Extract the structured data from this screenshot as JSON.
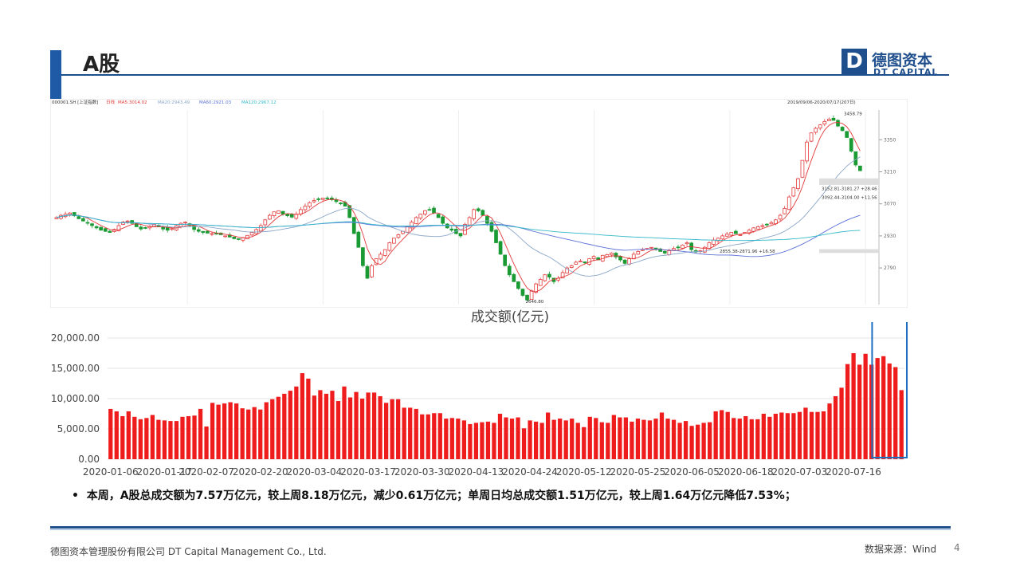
{
  "slide": {
    "title": "A股",
    "logo": {
      "box": "D",
      "cn": "德图资本",
      "en": "DT CAPITAL"
    },
    "bullet": "本周，A股总成交额为7.57万亿元，较上周8.18万亿元，减少0.61万亿元；单周日均总成交额1.51万亿元，较上周1.64万亿元降低7.53%；",
    "footer_left": "德图资本管理股份有限公司  DT Capital  Management  Co., Ltd.",
    "footer_right": "数据来源：Wind",
    "page_number": "4",
    "colors": {
      "brand": "#1f4e8c",
      "bar": "#ee1c1c",
      "highlight_box": "#1f6fc0",
      "up": "#e23a3a",
      "down": "#1a9a33"
    }
  },
  "chart_data": [
    {
      "type": "candlestick",
      "header": {
        "code": "000001.SH [上证指数]",
        "period": "日线",
        "ma5": "MA5:3014.02",
        "ma20": "MA20:2943.49",
        "ma60": "MA60:2921.03",
        "ma120": "MA120:2967.12",
        "range": "2019/09/06-2020/07/17(207日)"
      },
      "y_ticks": [
        3350,
        3210,
        3070,
        2930,
        2790
      ],
      "ylim": [
        2630,
        3480
      ],
      "annotations": {
        "high": "3458.79",
        "low": "2646.80",
        "range1": "3152.81-3181.27  +28.46",
        "range2": "3092.44-3104.00  +11.56",
        "range3": "2855.38-2871.96  +16.58"
      },
      "closes": [
        3010,
        3020,
        3025,
        3030,
        3018,
        3005,
        2995,
        2988,
        2975,
        2965,
        2955,
        2950,
        2945,
        2958,
        2975,
        2990,
        2995,
        2985,
        2970,
        2960,
        2965,
        2972,
        2980,
        2970,
        2960,
        2955,
        2962,
        2975,
        2985,
        2990,
        2975,
        2958,
        2950,
        2945,
        2942,
        2940,
        2938,
        2935,
        2930,
        2925,
        2918,
        2915,
        2922,
        2932,
        2945,
        2958,
        2975,
        3000,
        3020,
        3035,
        3040,
        3025,
        3018,
        3012,
        3025,
        3045,
        3060,
        3075,
        3085,
        3090,
        3095,
        3092,
        3088,
        3080,
        3070,
        3060,
        3010,
        2940,
        2880,
        2800,
        2745,
        2800,
        2830,
        2850,
        2870,
        2900,
        2920,
        2935,
        2950,
        2970,
        2990,
        3010,
        3025,
        3040,
        3045,
        3030,
        3010,
        2985,
        2965,
        2955,
        2940,
        2930,
        2980,
        3010,
        3045,
        3040,
        3020,
        2985,
        2950,
        2900,
        2850,
        2800,
        2760,
        2730,
        2700,
        2670,
        2650,
        2690,
        2720,
        2740,
        2760,
        2750,
        2730,
        2745,
        2770,
        2790,
        2800,
        2815,
        2820,
        2812,
        2830,
        2840,
        2825,
        2845,
        2848,
        2855,
        2838,
        2825,
        2810,
        2830,
        2850,
        2862,
        2870,
        2875,
        2880,
        2870,
        2862,
        2855,
        2865,
        2875,
        2880,
        2890,
        2900,
        2870,
        2860,
        2865,
        2880,
        2900,
        2912,
        2920,
        2930,
        2938,
        2945,
        2940,
        2935,
        2945,
        2955,
        2965,
        2970,
        2975,
        2980,
        2988,
        3000,
        3020,
        3050,
        3100,
        3140,
        3180,
        3260,
        3340,
        3380,
        3400,
        3415,
        3430,
        3440,
        3435,
        3410,
        3390,
        3360,
        3300,
        3240,
        3215
      ],
      "series_ma": [
        {
          "name": "MA5",
          "color": "#e23a3a"
        },
        {
          "name": "MA20",
          "color": "#8aa6c8"
        },
        {
          "name": "MA60",
          "color": "#5a70d8"
        },
        {
          "name": "MA120",
          "color": "#34b8c8"
        }
      ]
    },
    {
      "type": "bar",
      "title": "成交额(亿元)",
      "ylim": [
        0,
        20000
      ],
      "y_ticks": [
        "0.00",
        "5,000.00",
        "10,000.00",
        "15,000.00",
        "20,000.00"
      ],
      "x_tick_labels": [
        "2020-01-06",
        "2020-01-17",
        "2020-02-07",
        "2020-02-20",
        "2020-03-04",
        "2020-03-17",
        "2020-03-30",
        "2020-04-13",
        "2020-04-24",
        "2020-05-12",
        "2020-05-25",
        "2020-06-05",
        "2020-06-18",
        "2020-07-03",
        "2020-07-16"
      ],
      "x_tick_index": [
        0,
        9,
        16,
        25,
        34,
        43,
        52,
        61,
        70,
        79,
        88,
        97,
        106,
        115,
        124
      ],
      "values": [
        8300,
        7900,
        7100,
        7900,
        7000,
        6600,
        6800,
        7300,
        6500,
        6400,
        6300,
        6300,
        7000,
        7100,
        7200,
        8300,
        5400,
        9300,
        9000,
        9200,
        9400,
        9200,
        8400,
        8200,
        8600,
        8200,
        9400,
        9900,
        10300,
        10800,
        11300,
        12000,
        14200,
        13300,
        10500,
        11400,
        10800,
        11300,
        9600,
        12000,
        10200,
        11100,
        10000,
        11000,
        11000,
        10400,
        9300,
        9900,
        9900,
        8500,
        8500,
        8300,
        7400,
        7400,
        7600,
        7600,
        6700,
        6800,
        6700,
        6400,
        5800,
        6000,
        6100,
        6200,
        6000,
        7500,
        6900,
        6700,
        6900,
        5100,
        6400,
        6200,
        6000,
        7700,
        6500,
        6700,
        6400,
        6700,
        6000,
        5300,
        7000,
        6800,
        6100,
        6000,
        7300,
        6900,
        6900,
        6200,
        6700,
        6500,
        6400,
        6700,
        7700,
        6700,
        6500,
        6000,
        6300,
        5500,
        5700,
        6000,
        6100,
        7900,
        8100,
        7800,
        6800,
        6700,
        7100,
        6600,
        6600,
        7500,
        7000,
        7500,
        7700,
        7600,
        7600,
        7800,
        8500,
        7800,
        7800,
        7900,
        9200,
        10400,
        11800,
        15700,
        17500,
        15600,
        17400,
        15600,
        16700,
        17000,
        15800,
        15200,
        11400
      ],
      "highlight_last": 5
    }
  ]
}
